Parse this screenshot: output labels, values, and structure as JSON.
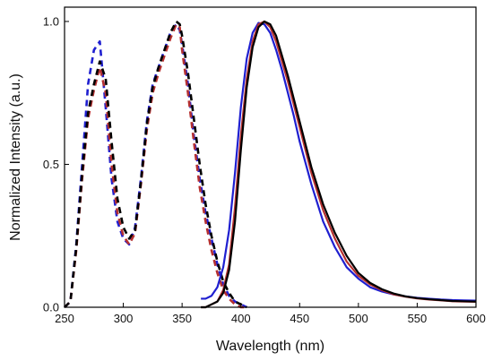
{
  "chart_data": {
    "type": "line",
    "title": "",
    "xlabel": "Wavelength (nm)",
    "ylabel": "Normalized Intensity (a.u.)",
    "xlim": [
      250,
      600
    ],
    "ylim": [
      0,
      1.05
    ],
    "x_ticks": [
      250,
      300,
      350,
      400,
      450,
      500,
      550,
      600
    ],
    "y_ticks": [
      0.0,
      0.5,
      1.0
    ],
    "y_tick_labels": [
      "0.0",
      "0.5",
      "1.0"
    ],
    "grid": false,
    "legend": "none",
    "series": [
      {
        "kind": "excitation",
        "style": "dashed",
        "color": "#1f1fd0",
        "x": [
          250,
          255,
          260,
          265,
          270,
          275,
          280,
          285,
          290,
          295,
          300,
          305,
          310,
          315,
          320,
          325,
          330,
          335,
          340,
          345,
          348,
          350,
          355,
          360,
          365,
          370,
          375,
          380,
          385,
          390,
          395,
          400,
          405
        ],
        "y": [
          0.0,
          0.02,
          0.22,
          0.5,
          0.78,
          0.9,
          0.93,
          0.7,
          0.45,
          0.3,
          0.24,
          0.22,
          0.28,
          0.45,
          0.65,
          0.78,
          0.84,
          0.9,
          0.96,
          0.99,
          0.97,
          0.92,
          0.78,
          0.6,
          0.45,
          0.33,
          0.24,
          0.15,
          0.08,
          0.04,
          0.02,
          0.01,
          0.0
        ]
      },
      {
        "kind": "excitation",
        "style": "dashed",
        "color": "#b53030",
        "x": [
          250,
          255,
          260,
          265,
          270,
          275,
          280,
          285,
          290,
          295,
          300,
          305,
          310,
          315,
          320,
          325,
          330,
          335,
          340,
          345,
          348,
          350,
          355,
          360,
          365,
          370,
          375,
          380,
          385,
          390,
          395,
          400,
          405
        ],
        "y": [
          0.0,
          0.02,
          0.2,
          0.45,
          0.66,
          0.76,
          0.84,
          0.75,
          0.5,
          0.33,
          0.25,
          0.22,
          0.26,
          0.43,
          0.62,
          0.75,
          0.82,
          0.88,
          0.94,
          0.99,
          0.98,
          0.9,
          0.75,
          0.58,
          0.42,
          0.3,
          0.2,
          0.12,
          0.06,
          0.03,
          0.01,
          0.0,
          0.0
        ]
      },
      {
        "kind": "excitation",
        "style": "dashed",
        "color": "#000000",
        "x": [
          250,
          255,
          260,
          265,
          270,
          275,
          280,
          285,
          290,
          295,
          300,
          305,
          310,
          315,
          320,
          325,
          330,
          335,
          340,
          345,
          348,
          350,
          355,
          360,
          365,
          370,
          375,
          380,
          385,
          390,
          395,
          400,
          405
        ],
        "y": [
          0.0,
          0.02,
          0.21,
          0.47,
          0.68,
          0.78,
          0.86,
          0.8,
          0.58,
          0.38,
          0.28,
          0.24,
          0.27,
          0.44,
          0.64,
          0.77,
          0.84,
          0.9,
          0.96,
          1.0,
          0.99,
          0.95,
          0.82,
          0.66,
          0.5,
          0.36,
          0.25,
          0.16,
          0.09,
          0.05,
          0.02,
          0.01,
          0.0
        ]
      },
      {
        "kind": "emission",
        "style": "solid",
        "color": "#1f1fd0",
        "x": [
          366,
          370,
          375,
          380,
          385,
          390,
          395,
          400,
          405,
          410,
          415,
          420,
          425,
          430,
          435,
          440,
          445,
          450,
          460,
          470,
          480,
          490,
          500,
          510,
          520,
          530,
          540,
          550,
          560,
          570,
          580,
          590,
          600
        ],
        "y": [
          0.03,
          0.03,
          0.04,
          0.07,
          0.14,
          0.27,
          0.47,
          0.7,
          0.87,
          0.96,
          0.995,
          0.99,
          0.96,
          0.9,
          0.83,
          0.75,
          0.67,
          0.58,
          0.43,
          0.3,
          0.21,
          0.14,
          0.1,
          0.07,
          0.055,
          0.045,
          0.038,
          0.033,
          0.03,
          0.027,
          0.025,
          0.024,
          0.023
        ]
      },
      {
        "kind": "emission",
        "style": "solid",
        "color": "#b53030",
        "x": [
          366,
          370,
          375,
          380,
          385,
          390,
          395,
          400,
          405,
          410,
          415,
          420,
          425,
          430,
          435,
          440,
          445,
          450,
          460,
          470,
          480,
          490,
          500,
          510,
          520,
          530,
          540,
          550,
          560,
          570,
          580,
          590,
          600
        ],
        "y": [
          0.0,
          0.0,
          0.01,
          0.02,
          0.06,
          0.15,
          0.35,
          0.6,
          0.8,
          0.93,
          0.99,
          1.0,
          0.98,
          0.93,
          0.86,
          0.79,
          0.71,
          0.63,
          0.47,
          0.34,
          0.24,
          0.16,
          0.11,
          0.08,
          0.06,
          0.045,
          0.037,
          0.031,
          0.027,
          0.024,
          0.021,
          0.02,
          0.019
        ]
      },
      {
        "kind": "emission",
        "style": "solid",
        "color": "#000000",
        "x": [
          366,
          370,
          375,
          380,
          385,
          390,
          395,
          400,
          405,
          410,
          415,
          420,
          425,
          430,
          435,
          440,
          445,
          450,
          460,
          470,
          480,
          490,
          500,
          510,
          520,
          530,
          540,
          550,
          560,
          570,
          580,
          590,
          600
        ],
        "y": [
          0.0,
          0.0,
          0.01,
          0.02,
          0.05,
          0.13,
          0.3,
          0.55,
          0.77,
          0.91,
          0.98,
          1.0,
          0.99,
          0.95,
          0.88,
          0.81,
          0.73,
          0.65,
          0.49,
          0.36,
          0.26,
          0.18,
          0.12,
          0.085,
          0.063,
          0.048,
          0.038,
          0.032,
          0.028,
          0.025,
          0.022,
          0.021,
          0.02
        ]
      }
    ]
  }
}
